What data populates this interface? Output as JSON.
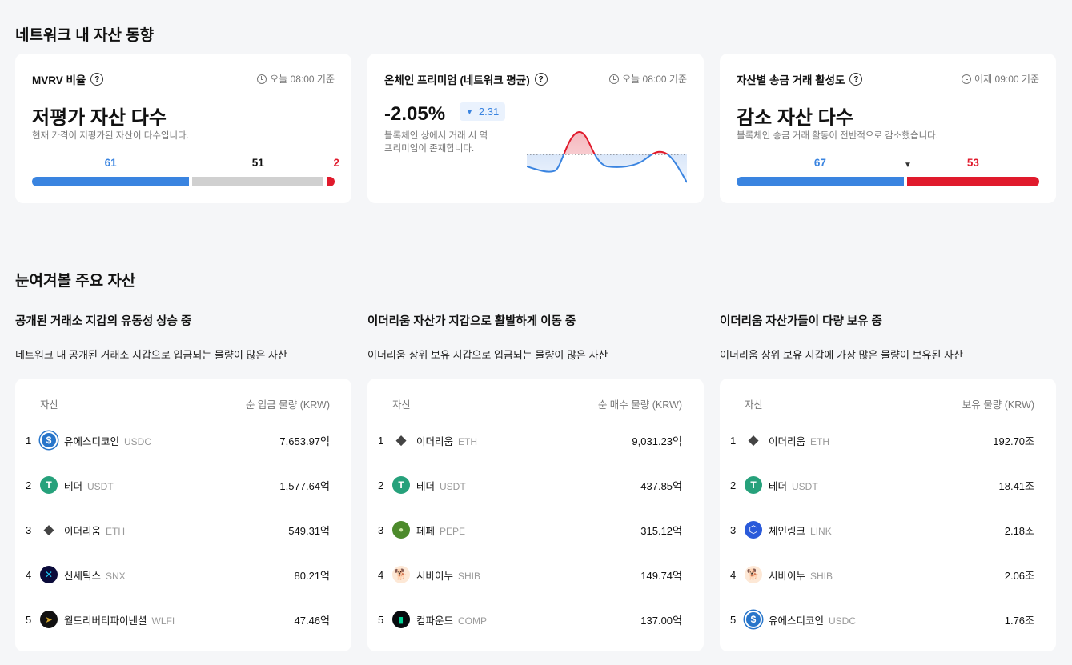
{
  "section1": {
    "title": "네트워크 내 자산 동향"
  },
  "mvrv": {
    "title": "MVRV 비율",
    "time": "오늘 08:00 기준",
    "headline": "저평가 자산 다수",
    "desc": "현재 가격이 저평가된 자산이 다수입니다.",
    "undervalued": 61,
    "neutral": 51,
    "overvalued": 2,
    "colors": {
      "low": "#3a84e0",
      "mid": "#d0d0d0",
      "high": "#e01a2c"
    }
  },
  "premium": {
    "title": "온체인 프리미엄 (네트워크 평균)",
    "time": "오늘 08:00 기준",
    "value": "-2.05%",
    "change": "2.31",
    "change_icon": "triangle-down",
    "desc1": "블록체인 상에서 거래 시 역",
    "desc2": "프리미엄이 존재합니다."
  },
  "activity": {
    "title": "자산별 송금 거래 활성도",
    "time": "어제 09:00 기준",
    "headline": "감소 자산 다수",
    "desc": "블록체인 송금 거래 활동이 전반적으로 감소했습니다.",
    "increase": 67,
    "decrease": 53,
    "marker": "▼"
  },
  "section2": {
    "title": "눈여겨볼 주요 자산"
  },
  "lists": [
    {
      "title": "공개된 거래소 지갑의 유동성 상승 중",
      "desc": "네트워크 내 공개된 거래소 지갑으로 입금되는 물량이 많은 자산",
      "col_asset": "자산",
      "col_value": "순 입금 물량 (KRW)",
      "rows": [
        {
          "rank": "1",
          "name": "유에스디코인",
          "symbol": "USDC",
          "value": "7,653.97억",
          "icon": "usdc"
        },
        {
          "rank": "2",
          "name": "테더",
          "symbol": "USDT",
          "value": "1,577.64억",
          "icon": "usdt"
        },
        {
          "rank": "3",
          "name": "이더리움",
          "symbol": "ETH",
          "value": "549.31억",
          "icon": "eth"
        },
        {
          "rank": "4",
          "name": "신세틱스",
          "symbol": "SNX",
          "value": "80.21억",
          "icon": "snx"
        },
        {
          "rank": "5",
          "name": "월드리버티파이낸셜",
          "symbol": "WLFI",
          "value": "47.46억",
          "icon": "wlfi"
        }
      ]
    },
    {
      "title": "이더리움 자산가 지갑으로 활발하게 이동 중",
      "desc": "이더리움 상위 보유 지갑으로 입금되는 물량이 많은 자산",
      "col_asset": "자산",
      "col_value": "순 매수 물량 (KRW)",
      "rows": [
        {
          "rank": "1",
          "name": "이더리움",
          "symbol": "ETH",
          "value": "9,031.23억",
          "icon": "eth"
        },
        {
          "rank": "2",
          "name": "테더",
          "symbol": "USDT",
          "value": "437.85억",
          "icon": "usdt"
        },
        {
          "rank": "3",
          "name": "페페",
          "symbol": "PEPE",
          "value": "315.12억",
          "icon": "pepe"
        },
        {
          "rank": "4",
          "name": "시바이누",
          "symbol": "SHIB",
          "value": "149.74억",
          "icon": "shib"
        },
        {
          "rank": "5",
          "name": "컴파운드",
          "symbol": "COMP",
          "value": "137.00억",
          "icon": "comp"
        }
      ]
    },
    {
      "title": "이더리움 자산가들이 다량 보유 중",
      "desc": "이더리움 상위 보유 지갑에 가장 많은 물량이 보유된 자산",
      "col_asset": "자산",
      "col_value": "보유 물량 (KRW)",
      "rows": [
        {
          "rank": "1",
          "name": "이더리움",
          "symbol": "ETH",
          "value": "192.70조",
          "icon": "eth"
        },
        {
          "rank": "2",
          "name": "테더",
          "symbol": "USDT",
          "value": "18.41조",
          "icon": "usdt"
        },
        {
          "rank": "3",
          "name": "체인링크",
          "symbol": "LINK",
          "value": "2.18조",
          "icon": "link"
        },
        {
          "rank": "4",
          "name": "시바이누",
          "symbol": "SHIB",
          "value": "2.06조",
          "icon": "shib"
        },
        {
          "rank": "5",
          "name": "유에스디코인",
          "symbol": "USDC",
          "value": "1.76조",
          "icon": "usdc"
        }
      ]
    }
  ]
}
